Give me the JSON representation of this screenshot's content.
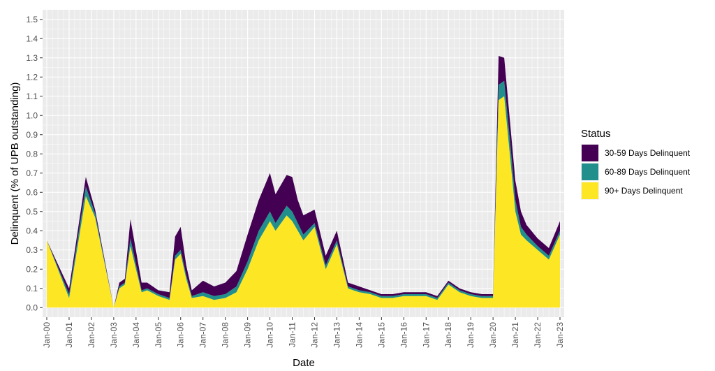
{
  "chart_data": {
    "type": "area",
    "stacked": true,
    "xlabel": "Date",
    "ylabel": "Delinquent (% of UPB outstanding)",
    "ylim": [
      -0.05,
      1.55
    ],
    "xlim": [
      "2000-01",
      "2023-01"
    ],
    "grid": true,
    "legend_position": "right",
    "legend_title": "Status",
    "yticks": [
      "0.0",
      "0.1",
      "0.2",
      "0.3",
      "0.4",
      "0.5",
      "0.6",
      "0.7",
      "0.8",
      "0.9",
      "1.0",
      "1.1",
      "1.2",
      "1.3",
      "1.4",
      "1.5"
    ],
    "xticks": [
      "Jan-00",
      "Jan-01",
      "Jan-02",
      "Jan-03",
      "Jan-04",
      "Jan-05",
      "Jan-06",
      "Jan-07",
      "Jan-08",
      "Jan-09",
      "Jan-10",
      "Jan-11",
      "Jan-12",
      "Jan-13",
      "Jan-14",
      "Jan-15",
      "Jan-16",
      "Jan-17",
      "Jan-18",
      "Jan-19",
      "Jan-20",
      "Jan-21",
      "Jan-22",
      "Jan-23"
    ],
    "series": [
      {
        "name": "30-59 Days Delinquent",
        "color": "#440154",
        "x": [
          "2000-01",
          "2001-01",
          "2001-10",
          "2002-03",
          "2003-01",
          "2003-04",
          "2003-07",
          "2003-10",
          "2004-04",
          "2004-07",
          "2005-01",
          "2005-07",
          "2005-10",
          "2006-01",
          "2006-04",
          "2006-07",
          "2007-01",
          "2007-07",
          "2008-01",
          "2008-07",
          "2009-01",
          "2009-07",
          "2010-01",
          "2010-04",
          "2010-10",
          "2011-01",
          "2011-04",
          "2011-07",
          "2012-01",
          "2012-07",
          "2013-01",
          "2013-07",
          "2014-01",
          "2014-07",
          "2015-01",
          "2015-07",
          "2016-01",
          "2016-07",
          "2017-01",
          "2017-07",
          "2018-01",
          "2018-07",
          "2019-01",
          "2019-07",
          "2020-01",
          "2020-04",
          "2020-07",
          "2020-10",
          "2021-01",
          "2021-04",
          "2021-07",
          "2022-01",
          "2022-07",
          "2023-01"
        ],
        "values": [
          0.0,
          0.03,
          0.05,
          0.02,
          0.0,
          0.02,
          0.02,
          0.1,
          0.04,
          0.03,
          0.02,
          0.03,
          0.1,
          0.12,
          0.05,
          0.03,
          0.06,
          0.05,
          0.06,
          0.08,
          0.14,
          0.16,
          0.2,
          0.15,
          0.16,
          0.18,
          0.12,
          0.1,
          0.07,
          0.05,
          0.05,
          0.02,
          0.02,
          0.01,
          0.01,
          0.01,
          0.01,
          0.01,
          0.01,
          0.01,
          0.01,
          0.01,
          0.01,
          0.01,
          0.01,
          0.15,
          0.12,
          0.1,
          0.1,
          0.08,
          0.05,
          0.04,
          0.04,
          0.05
        ]
      },
      {
        "name": "60-89 Days Delinquent",
        "color": "#21908c",
        "x": [
          "2000-01",
          "2001-01",
          "2001-10",
          "2002-03",
          "2003-01",
          "2003-04",
          "2003-07",
          "2003-10",
          "2004-04",
          "2004-07",
          "2005-01",
          "2005-07",
          "2005-10",
          "2006-01",
          "2006-04",
          "2006-07",
          "2007-01",
          "2007-07",
          "2008-01",
          "2008-07",
          "2009-01",
          "2009-07",
          "2010-01",
          "2010-04",
          "2010-10",
          "2011-01",
          "2011-04",
          "2011-07",
          "2012-01",
          "2012-07",
          "2013-01",
          "2013-07",
          "2014-01",
          "2014-07",
          "2015-01",
          "2015-07",
          "2016-01",
          "2016-07",
          "2017-01",
          "2017-07",
          "2018-01",
          "2018-07",
          "2019-01",
          "2019-07",
          "2020-01",
          "2020-04",
          "2020-07",
          "2020-10",
          "2021-01",
          "2021-04",
          "2021-07",
          "2022-01",
          "2022-07",
          "2023-01"
        ],
        "values": [
          0.0,
          0.02,
          0.05,
          0.02,
          0.0,
          0.01,
          0.01,
          0.04,
          0.01,
          0.01,
          0.01,
          0.01,
          0.02,
          0.02,
          0.02,
          0.01,
          0.02,
          0.02,
          0.02,
          0.03,
          0.04,
          0.05,
          0.05,
          0.04,
          0.05,
          0.05,
          0.04,
          0.03,
          0.02,
          0.02,
          0.02,
          0.01,
          0.01,
          0.01,
          0.01,
          0.01,
          0.01,
          0.01,
          0.01,
          0.01,
          0.01,
          0.01,
          0.01,
          0.01,
          0.01,
          0.08,
          0.08,
          0.08,
          0.06,
          0.04,
          0.03,
          0.02,
          0.02,
          0.02
        ]
      },
      {
        "name": "90+ Days Delinquent",
        "color": "#fde725",
        "x": [
          "2000-01",
          "2001-01",
          "2001-10",
          "2002-03",
          "2003-01",
          "2003-04",
          "2003-07",
          "2003-10",
          "2004-04",
          "2004-07",
          "2005-01",
          "2005-07",
          "2005-10",
          "2006-01",
          "2006-04",
          "2006-07",
          "2007-01",
          "2007-07",
          "2008-01",
          "2008-07",
          "2009-01",
          "2009-07",
          "2010-01",
          "2010-04",
          "2010-10",
          "2011-01",
          "2011-04",
          "2011-07",
          "2012-01",
          "2012-07",
          "2013-01",
          "2013-07",
          "2014-01",
          "2014-07",
          "2015-01",
          "2015-07",
          "2016-01",
          "2016-07",
          "2017-01",
          "2017-07",
          "2018-01",
          "2018-07",
          "2019-01",
          "2019-07",
          "2020-01",
          "2020-04",
          "2020-07",
          "2020-10",
          "2021-01",
          "2021-04",
          "2021-07",
          "2022-01",
          "2022-07",
          "2023-01"
        ],
        "values": [
          0.35,
          0.05,
          0.58,
          0.47,
          0.0,
          0.1,
          0.12,
          0.32,
          0.08,
          0.09,
          0.06,
          0.04,
          0.25,
          0.28,
          0.15,
          0.05,
          0.06,
          0.04,
          0.05,
          0.08,
          0.2,
          0.35,
          0.45,
          0.4,
          0.48,
          0.45,
          0.4,
          0.35,
          0.42,
          0.2,
          0.33,
          0.1,
          0.08,
          0.07,
          0.05,
          0.05,
          0.06,
          0.06,
          0.06,
          0.04,
          0.12,
          0.08,
          0.06,
          0.05,
          0.05,
          1.08,
          1.1,
          0.8,
          0.5,
          0.38,
          0.35,
          0.3,
          0.25,
          0.38
        ]
      }
    ],
    "legend": [
      {
        "label": "30-59 Days Delinquent",
        "color": "#440154"
      },
      {
        "label": "60-89 Days Delinquent",
        "color": "#21908c"
      },
      {
        "label": "90+ Days Delinquent",
        "color": "#fde725"
      }
    ]
  }
}
